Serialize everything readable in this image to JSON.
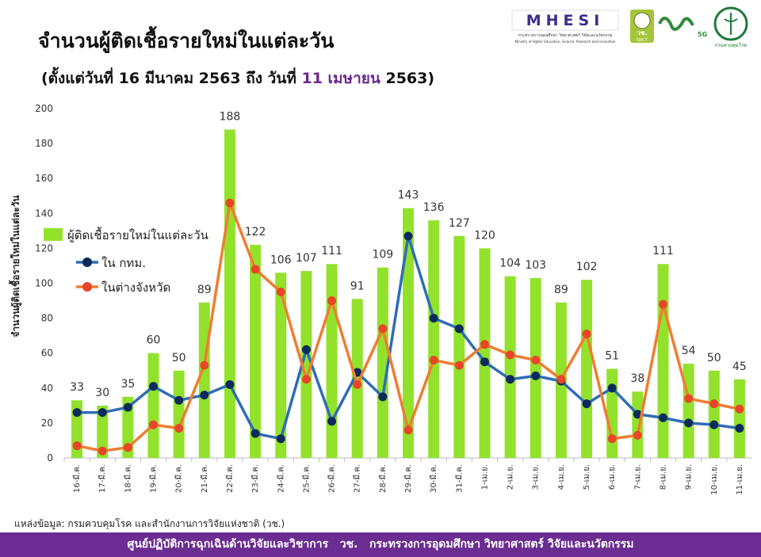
{
  "chart_data": {
    "type": "combo",
    "title": "จำนวนผู้ติดเชื้อรายใหม่ในแต่ละวัน",
    "subtitle": [
      "(ตั้งแต่วันที่ 16 มีนาคม 2563 ถึง วันที่ ",
      "11 เมษายน",
      " 2563)"
    ],
    "y_label": "จำนวนผู้ติดเชื้อรายใหม่ในแต่ละวัน",
    "categories": [
      "16-มี.ค.",
      "17-มี.ค.",
      "18-มี.ค.",
      "19-มี.ค.",
      "20-มี.ค.",
      "21-มี.ค.",
      "22-มี.ค.",
      "23-มี.ค.",
      "24-มี.ค.",
      "25-มี.ค.",
      "26-มี.ค.",
      "27-มี.ค.",
      "28-มี.ค.",
      "29-มี.ค.",
      "30-มี.ค.",
      "31-มี.ค.",
      "1-เม.ย.",
      "2-เม.ย.",
      "3-เม.ย.",
      "4-เม.ย.",
      "5-เม.ย.",
      "6-เม.ย.",
      "7-เม.ย.",
      "8-เม.ย.",
      "9-เม.ย.",
      "10-เม.ย.",
      "11-เม.ย."
    ],
    "series": [
      {
        "name": "ผู้ติดเชื้อรายใหม่ในแต่ละวัน",
        "type": "bar",
        "color": "#92e22c",
        "show_labels": true,
        "values": [
          33,
          30,
          35,
          60,
          50,
          89,
          188,
          122,
          106,
          107,
          111,
          91,
          109,
          143,
          136,
          127,
          120,
          104,
          103,
          89,
          102,
          51,
          38,
          111,
          54,
          50,
          45
        ]
      },
      {
        "name": "ใน กทม.",
        "type": "line",
        "color": "#2f6db5",
        "marker_color": "#0c2a5c",
        "values": [
          26,
          26,
          29,
          41,
          33,
          36,
          42,
          14,
          11,
          62,
          21,
          49,
          35,
          127,
          80,
          74,
          55,
          45,
          47,
          44,
          31,
          40,
          25,
          23,
          20,
          19,
          17
        ]
      },
      {
        "name": "ในต่างจังหวัด",
        "type": "line",
        "color": "#ef7d31",
        "marker_color": "#e8452a",
        "values": [
          7,
          4,
          6,
          19,
          17,
          53,
          146,
          108,
          95,
          45,
          90,
          42,
          74,
          16,
          56,
          53,
          65,
          59,
          56,
          45,
          71,
          11,
          13,
          88,
          34,
          31,
          28
        ]
      }
    ],
    "ylim": [
      0,
      200
    ],
    "yticks": [
      0,
      20,
      40,
      60,
      80,
      100,
      120,
      140,
      160,
      180,
      200
    ],
    "grid": false,
    "legend": "left"
  },
  "source": "แหล่งข้อมูล: กรมควบคุมโรค และสำนักงานการวิจัยแห่งชาติ (วช.)",
  "footer": "ศูนย์ปฏิบัติการฉุกเฉินด้านวิจัยและวิชาการ   วช.   กระทรวงการอุดมศึกษา วิทยาศาสตร์ วิจัยและนวัตกรรม",
  "logos": {
    "mhesi": "MHESI",
    "mhesi_th": "กระทรวงการอุดมศึกษา วิทยาศาสตร์ วิจัยและนวัตกรรม",
    "mhesi_en": "Ministry of Higher Education, Science, Research and Innovation",
    "nrct_th": "วช.",
    "nrct": "NRCT",
    "g5": "5G",
    "ddc": "กรมควบคุมโรค"
  }
}
